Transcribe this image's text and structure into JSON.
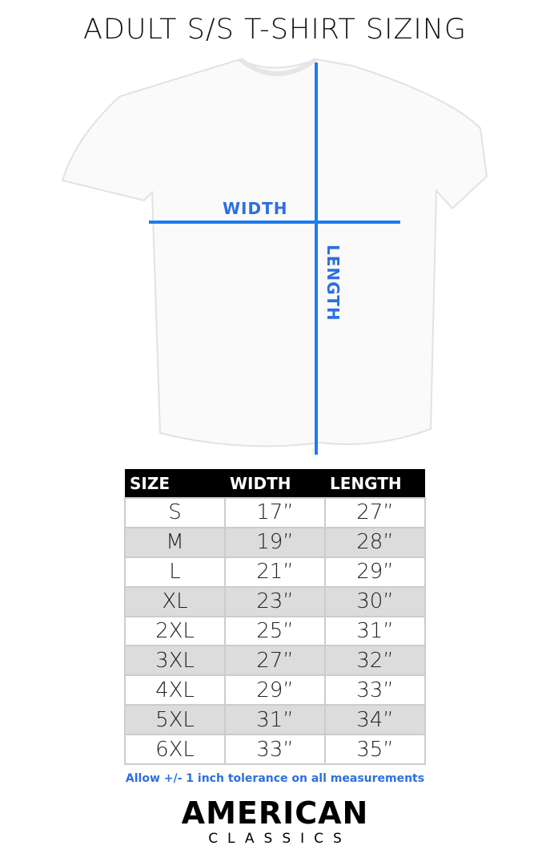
{
  "title": "ADULT S/S T-SHIRT SIZING",
  "diagram": {
    "width_label": "WIDTH",
    "length_label": "LENGTH",
    "line_color": "#1e7bf0"
  },
  "table": {
    "headers": [
      "SIZE",
      "WIDTH",
      "LENGTH"
    ],
    "rows": [
      [
        "S",
        "17”",
        "27”"
      ],
      [
        "M",
        "19”",
        "28”"
      ],
      [
        "L",
        "21”",
        "29”"
      ],
      [
        "XL",
        "23”",
        "30”"
      ],
      [
        "2XL",
        "25”",
        "31”"
      ],
      [
        "3XL",
        "27”",
        "32”"
      ],
      [
        "4XL",
        "29”",
        "33”"
      ],
      [
        "5XL",
        "31”",
        "34”"
      ],
      [
        "6XL",
        "33”",
        "35”"
      ]
    ]
  },
  "note": "Allow +/- 1 inch tolerance on all measurements",
  "logo": {
    "line1": "AMERICAN",
    "line2": "CLASSICS"
  }
}
